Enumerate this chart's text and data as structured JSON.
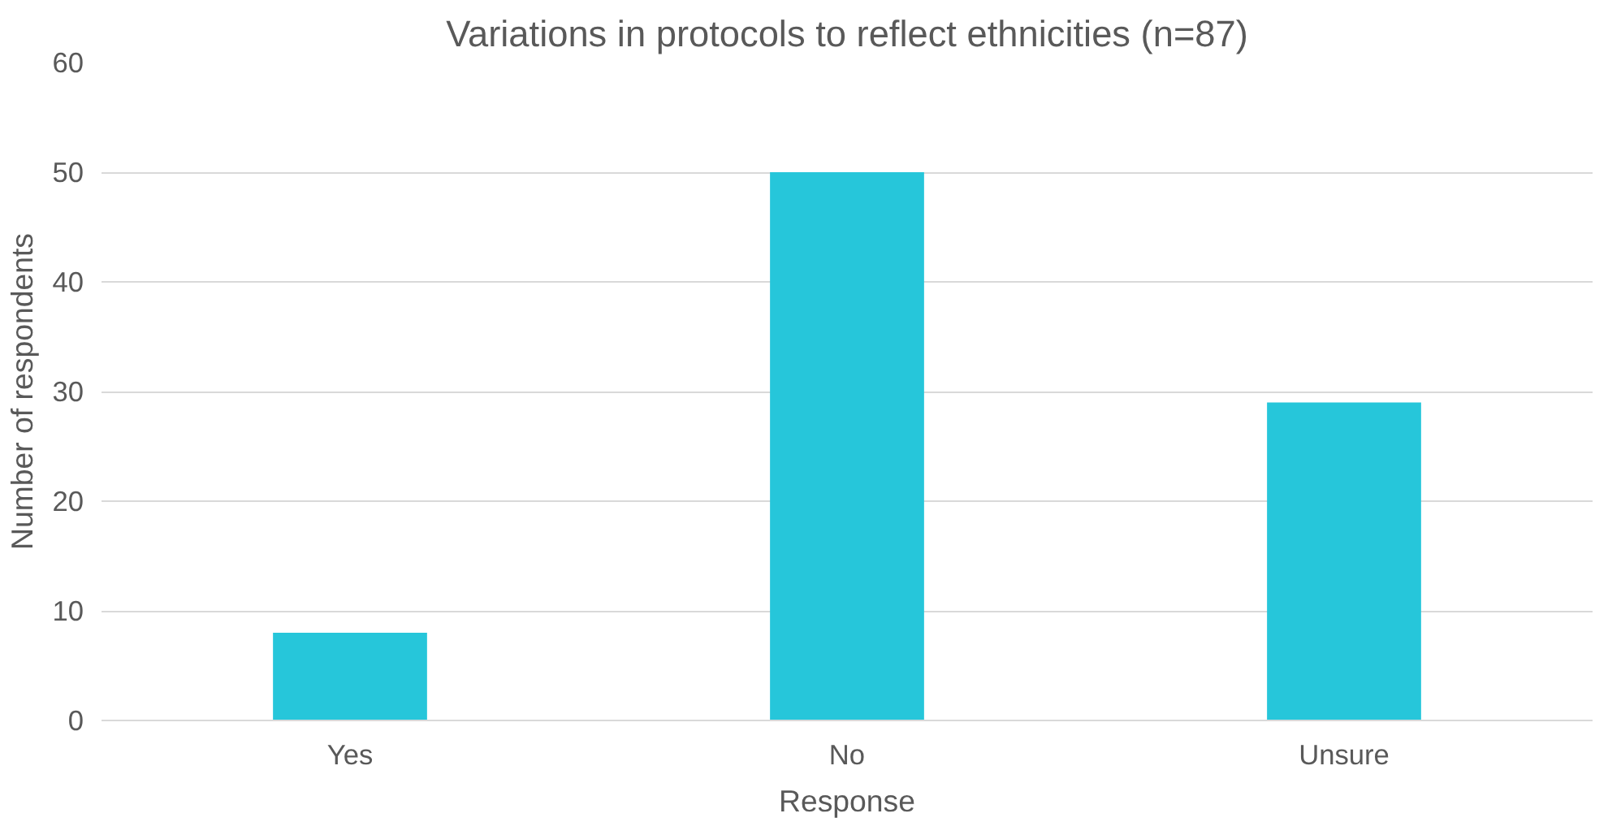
{
  "chart_data": {
    "type": "bar",
    "title": "Variations in protocols to reflect ethnicities (n=87)",
    "xlabel": "Response",
    "ylabel": "Number of respondents",
    "categories": [
      "Yes",
      "No",
      "Unsure"
    ],
    "values": [
      8,
      50,
      29
    ],
    "color": "#26c6da",
    "ylim": [
      0,
      60
    ],
    "yticks": [
      0,
      10,
      20,
      30,
      40,
      50,
      60
    ],
    "grid": "y"
  }
}
